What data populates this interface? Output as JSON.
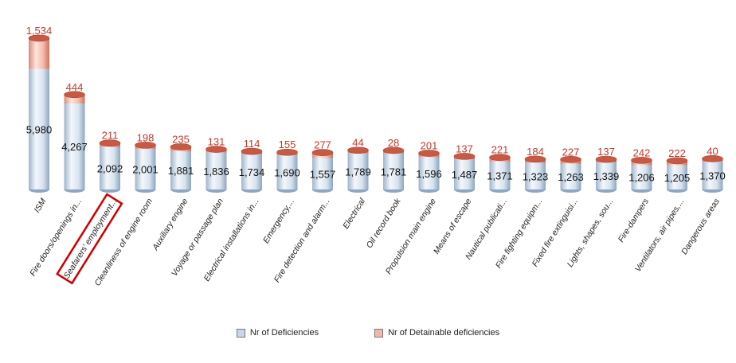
{
  "chart_data": {
    "type": "bar",
    "stacked": true,
    "categories": [
      "ISM",
      "Fire doors/openings in...",
      "Seafarers' employment...",
      "Cleanliness of engine room",
      "Auxiliary engine",
      "Voyage or passage plan",
      "Electrical installations in...",
      "Emergency,...",
      "Fire detection and alarm...",
      "Electrical",
      "Oil record book",
      "Propulsion main engine",
      "Means of escape",
      "Nautical publicati...",
      "Fire fighting equipm...",
      "Fixed fire extinguisi...",
      "Lights, shapes, sou...",
      "Fire-dampers",
      "Ventilators, air pipes,...",
      "Dangerous areas"
    ],
    "series": [
      {
        "name": "Nr of Deficiencies",
        "values": [
          5980,
          4267,
          2092,
          2001,
          1881,
          1836,
          1734,
          1690,
          1557,
          1789,
          1781,
          1596,
          1487,
          1371,
          1323,
          1263,
          1339,
          1206,
          1205,
          1370
        ],
        "labels": [
          "5,980",
          "4,267",
          "2,092",
          "2,001",
          "1,881",
          "1,836",
          "1,734",
          "1,690",
          "1,557",
          "1,789",
          "1,781",
          "1,596",
          "1,487",
          "1,371",
          "1,323",
          "1,263",
          "1,339",
          "1,206",
          "1,205",
          "1,370"
        ],
        "color": "#c9d8e8"
      },
      {
        "name": "Nr of Detainable deficiencies",
        "values": [
          1534,
          444,
          211,
          198,
          235,
          131,
          114,
          155,
          277,
          44,
          28,
          201,
          137,
          221,
          184,
          227,
          137,
          242,
          222,
          40
        ],
        "labels": [
          "1,534",
          "444",
          "211",
          "198",
          "235",
          "131",
          "114",
          "155",
          "277",
          "44",
          "28",
          "201",
          "137",
          "221",
          "184",
          "227",
          "137",
          "242",
          "222",
          "40"
        ],
        "color": "#f4b6a8"
      }
    ],
    "highlighted_category_index": 2,
    "highlight_color": "#cc0000",
    "legend_position": "bottom",
    "grid": false
  }
}
